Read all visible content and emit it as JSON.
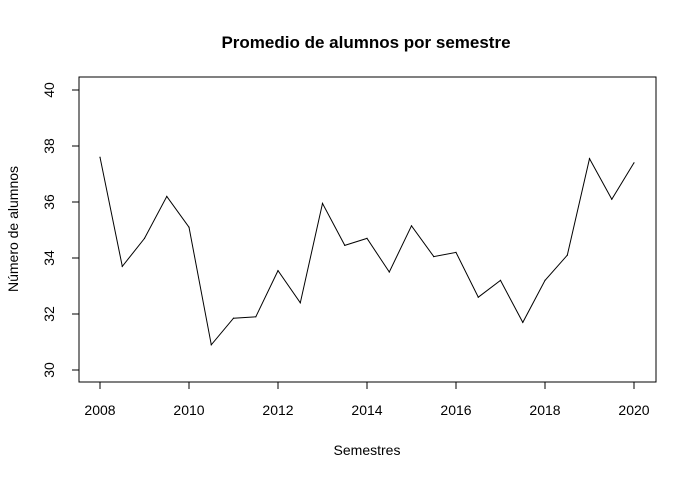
{
  "chart_data": {
    "type": "line",
    "title": "Promedio de alumnos por semestre",
    "xlabel": "Semestres",
    "ylabel": "Número de alumnos",
    "xlim": [
      2008,
      2020
    ],
    "ylim": [
      30,
      40
    ],
    "x_ticks": [
      2008,
      2010,
      2012,
      2014,
      2016,
      2018,
      2020
    ],
    "y_ticks": [
      30,
      32,
      34,
      36,
      38,
      40
    ],
    "grid": false,
    "line_color": "#000000",
    "series": [
      {
        "x": [
          2008,
          2008.5,
          2009,
          2009.5,
          2010,
          2010.5,
          2011,
          2011.5,
          2012,
          2012.5,
          2013,
          2013.5,
          2014,
          2014.5,
          2015,
          2015.5,
          2016,
          2016.5,
          2017,
          2017.5,
          2018,
          2018.5,
          2019,
          2019.5,
          2020
        ],
        "values": [
          37.6,
          33.7,
          34.7,
          36.2,
          35.1,
          30.9,
          31.85,
          31.9,
          33.55,
          32.4,
          35.95,
          34.45,
          34.7,
          33.5,
          35.15,
          34.05,
          34.2,
          32.6,
          33.2,
          31.7,
          33.2,
          34.1,
          37.55,
          36.1,
          37.4
        ]
      }
    ]
  }
}
